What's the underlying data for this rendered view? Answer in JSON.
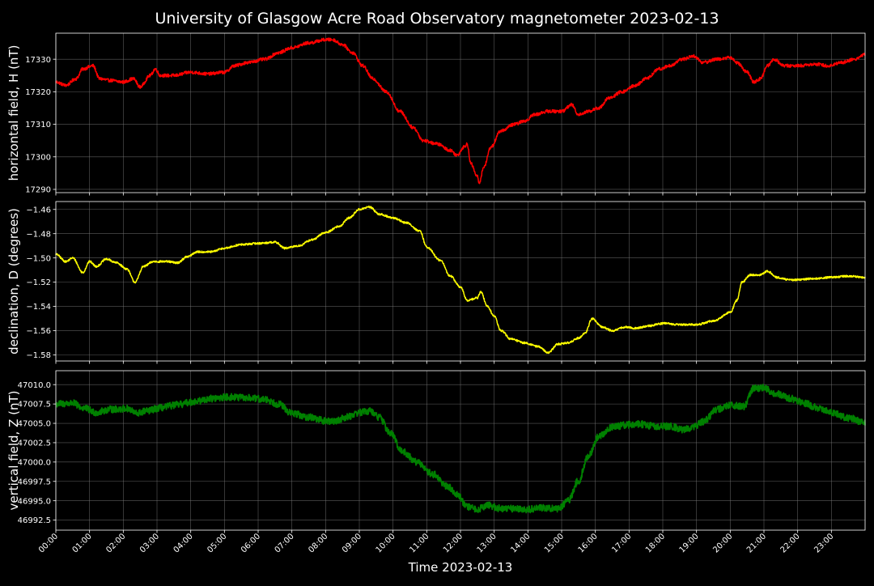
{
  "chart_data": {
    "type": "line",
    "title": "University of Glasgow Acre Road Observatory magnetometer 2023-02-13",
    "xlabel": "Time 2023-02-13",
    "x_ticks": [
      "00:00",
      "01:00",
      "02:00",
      "03:00",
      "04:00",
      "05:00",
      "06:00",
      "07:00",
      "08:00",
      "09:00",
      "10:00",
      "11:00",
      "12:00",
      "13:00",
      "14:00",
      "15:00",
      "16:00",
      "17:00",
      "18:00",
      "19:00",
      "20:00",
      "21:00",
      "22:00",
      "23:00"
    ],
    "xlim_hours": [
      0,
      24
    ],
    "grid": true,
    "background": "#000000",
    "panels": [
      {
        "name": "H",
        "ylabel": "horizontal field, H (nT)",
        "color": "#ff0000",
        "ylim": [
          17289,
          17338
        ],
        "y_ticks": [
          "17290",
          "17300",
          "17310",
          "17320",
          "17330"
        ],
        "y_tick_values": [
          17290,
          17300,
          17310,
          17320,
          17330
        ],
        "noise": 0.5,
        "points": [
          [
            0,
            17323
          ],
          [
            0.3,
            17322
          ],
          [
            0.6,
            17324
          ],
          [
            0.8,
            17327
          ],
          [
            1.1,
            17328
          ],
          [
            1.3,
            17324
          ],
          [
            1.6,
            17323.5
          ],
          [
            2.0,
            17323
          ],
          [
            2.3,
            17324
          ],
          [
            2.5,
            17321.5
          ],
          [
            2.8,
            17325
          ],
          [
            2.95,
            17327
          ],
          [
            3.1,
            17325
          ],
          [
            3.5,
            17325
          ],
          [
            4.0,
            17326
          ],
          [
            4.5,
            17325.5
          ],
          [
            5.0,
            17326
          ],
          [
            5.3,
            17328
          ],
          [
            5.7,
            17329
          ],
          [
            6.2,
            17330
          ],
          [
            6.6,
            17332
          ],
          [
            7.0,
            17333.5
          ],
          [
            7.5,
            17335
          ],
          [
            8.0,
            17336
          ],
          [
            8.2,
            17336
          ],
          [
            8.5,
            17334.5
          ],
          [
            8.8,
            17332
          ],
          [
            9.1,
            17328
          ],
          [
            9.4,
            17324
          ],
          [
            9.8,
            17320
          ],
          [
            10.2,
            17314
          ],
          [
            10.6,
            17309
          ],
          [
            10.9,
            17305
          ],
          [
            11.3,
            17304
          ],
          [
            11.7,
            17302
          ],
          [
            11.9,
            17300.5
          ],
          [
            12.1,
            17303
          ],
          [
            12.2,
            17304
          ],
          [
            12.3,
            17298
          ],
          [
            12.5,
            17294
          ],
          [
            12.55,
            17292
          ],
          [
            12.7,
            17297
          ],
          [
            12.9,
            17303
          ],
          [
            13.2,
            17308
          ],
          [
            13.6,
            17310
          ],
          [
            13.9,
            17311
          ],
          [
            14.2,
            17313
          ],
          [
            14.6,
            17314
          ],
          [
            15.0,
            17314
          ],
          [
            15.3,
            17316
          ],
          [
            15.5,
            17313
          ],
          [
            15.8,
            17314
          ],
          [
            16.1,
            17315
          ],
          [
            16.4,
            17318
          ],
          [
            16.8,
            17320
          ],
          [
            17.2,
            17322
          ],
          [
            17.5,
            17324
          ],
          [
            17.9,
            17327
          ],
          [
            18.2,
            17328
          ],
          [
            18.6,
            17330
          ],
          [
            18.9,
            17331
          ],
          [
            19.2,
            17329
          ],
          [
            19.6,
            17330
          ],
          [
            20.0,
            17330.5
          ],
          [
            20.2,
            17329
          ],
          [
            20.5,
            17326
          ],
          [
            20.7,
            17323
          ],
          [
            20.9,
            17324
          ],
          [
            21.1,
            17328
          ],
          [
            21.3,
            17330
          ],
          [
            21.6,
            17328
          ],
          [
            22.0,
            17328
          ],
          [
            22.5,
            17328.5
          ],
          [
            22.9,
            17328
          ],
          [
            23.3,
            17329
          ],
          [
            23.7,
            17330
          ],
          [
            24.0,
            17331.5
          ]
        ]
      },
      {
        "name": "D",
        "ylabel": "declination, D (degrees)",
        "color": "#ffff00",
        "ylim": [
          -1.585,
          -1.4535
        ],
        "y_ticks": [
          "−1.46",
          "−1.48",
          "−1.50",
          "−1.52",
          "−1.54",
          "−1.56",
          "−1.58"
        ],
        "y_tick_values": [
          -1.46,
          -1.48,
          -1.5,
          -1.52,
          -1.54,
          -1.56,
          -1.58
        ],
        "noise": 0.0008,
        "points": [
          [
            0,
            -1.497
          ],
          [
            0.3,
            -1.503
          ],
          [
            0.5,
            -1.5
          ],
          [
            0.8,
            -1.512
          ],
          [
            1.0,
            -1.503
          ],
          [
            1.2,
            -1.507
          ],
          [
            1.5,
            -1.501
          ],
          [
            1.8,
            -1.504
          ],
          [
            2.1,
            -1.509
          ],
          [
            2.35,
            -1.52
          ],
          [
            2.6,
            -1.507
          ],
          [
            2.9,
            -1.503
          ],
          [
            3.3,
            -1.503
          ],
          [
            3.6,
            -1.504
          ],
          [
            3.9,
            -1.499
          ],
          [
            4.2,
            -1.495
          ],
          [
            4.6,
            -1.495
          ],
          [
            5.0,
            -1.492
          ],
          [
            5.5,
            -1.489
          ],
          [
            6.0,
            -1.488
          ],
          [
            6.5,
            -1.487
          ],
          [
            6.8,
            -1.492
          ],
          [
            7.2,
            -1.49
          ],
          [
            7.6,
            -1.485
          ],
          [
            8.0,
            -1.479
          ],
          [
            8.4,
            -1.474
          ],
          [
            8.7,
            -1.467
          ],
          [
            9.0,
            -1.46
          ],
          [
            9.3,
            -1.458
          ],
          [
            9.6,
            -1.464
          ],
          [
            10.0,
            -1.467
          ],
          [
            10.4,
            -1.471
          ],
          [
            10.8,
            -1.478
          ],
          [
            11.0,
            -1.491
          ],
          [
            11.4,
            -1.502
          ],
          [
            11.7,
            -1.515
          ],
          [
            12.0,
            -1.524
          ],
          [
            12.2,
            -1.535
          ],
          [
            12.5,
            -1.533
          ],
          [
            12.6,
            -1.528
          ],
          [
            12.8,
            -1.54
          ],
          [
            13.0,
            -1.548
          ],
          [
            13.2,
            -1.56
          ],
          [
            13.5,
            -1.567
          ],
          [
            13.9,
            -1.57
          ],
          [
            14.3,
            -1.573
          ],
          [
            14.6,
            -1.578
          ],
          [
            14.9,
            -1.571
          ],
          [
            15.2,
            -1.57
          ],
          [
            15.5,
            -1.566
          ],
          [
            15.7,
            -1.562
          ],
          [
            15.9,
            -1.55
          ],
          [
            16.2,
            -1.557
          ],
          [
            16.5,
            -1.56
          ],
          [
            16.9,
            -1.557
          ],
          [
            17.2,
            -1.558
          ],
          [
            17.6,
            -1.556
          ],
          [
            18.0,
            -1.554
          ],
          [
            18.5,
            -1.555
          ],
          [
            19.0,
            -1.555
          ],
          [
            19.5,
            -1.552
          ],
          [
            20.0,
            -1.545
          ],
          [
            20.2,
            -1.535
          ],
          [
            20.35,
            -1.52
          ],
          [
            20.6,
            -1.514
          ],
          [
            20.9,
            -1.514
          ],
          [
            21.1,
            -1.511
          ],
          [
            21.4,
            -1.516
          ],
          [
            21.7,
            -1.518
          ],
          [
            22.0,
            -1.518
          ],
          [
            22.5,
            -1.517
          ],
          [
            23.0,
            -1.516
          ],
          [
            23.5,
            -1.515
          ],
          [
            24.0,
            -1.516
          ]
        ]
      },
      {
        "name": "Z",
        "ylabel": "vertical field, Z (nT)",
        "color": "#008000",
        "ylim": [
          46991.2,
          47011.8
        ],
        "y_ticks": [
          "46992.5",
          "46995.0",
          "46997.5",
          "47000.0",
          "47002.5",
          "47005.0",
          "47007.5",
          "47010.0"
        ],
        "y_tick_values": [
          46992.5,
          46995.0,
          46997.5,
          47000.0,
          47002.5,
          47005.0,
          47007.5,
          47010.0
        ],
        "noise": 0.45,
        "points": [
          [
            0,
            47007.5
          ],
          [
            0.5,
            47007.6
          ],
          [
            0.8,
            47007.0
          ],
          [
            1.2,
            47006.4
          ],
          [
            1.6,
            47006.8
          ],
          [
            2.1,
            47006.9
          ],
          [
            2.4,
            47006.3
          ],
          [
            2.7,
            47006.6
          ],
          [
            3.1,
            47007.0
          ],
          [
            3.6,
            47007.4
          ],
          [
            4.1,
            47007.8
          ],
          [
            4.6,
            47008.2
          ],
          [
            5.1,
            47008.4
          ],
          [
            5.6,
            47008.3
          ],
          [
            6.2,
            47008.1
          ],
          [
            6.6,
            47007.5
          ],
          [
            7.0,
            47006.3
          ],
          [
            7.5,
            47005.8
          ],
          [
            8.0,
            47005.3
          ],
          [
            8.3,
            47005.3
          ],
          [
            8.6,
            47005.8
          ],
          [
            9.0,
            47006.4
          ],
          [
            9.3,
            47006.6
          ],
          [
            9.6,
            47005.8
          ],
          [
            9.9,
            47003.8
          ],
          [
            10.3,
            47001.3
          ],
          [
            10.7,
            47000.0
          ],
          [
            11.2,
            46998.4
          ],
          [
            11.6,
            46996.9
          ],
          [
            11.9,
            46995.9
          ],
          [
            12.2,
            46994.2
          ],
          [
            12.5,
            46993.9
          ],
          [
            12.8,
            46994.4
          ],
          [
            13.2,
            46994.0
          ],
          [
            13.6,
            46994.0
          ],
          [
            14.0,
            46993.9
          ],
          [
            14.5,
            46994.1
          ],
          [
            14.9,
            46994.0
          ],
          [
            15.2,
            46995.0
          ],
          [
            15.5,
            46997.6
          ],
          [
            15.8,
            47000.8
          ],
          [
            16.1,
            47003.3
          ],
          [
            16.5,
            47004.5
          ],
          [
            16.9,
            47004.8
          ],
          [
            17.3,
            47004.9
          ],
          [
            17.8,
            47004.6
          ],
          [
            18.2,
            47004.6
          ],
          [
            18.6,
            47004.2
          ],
          [
            18.9,
            47004.5
          ],
          [
            19.2,
            47005.2
          ],
          [
            19.6,
            47006.8
          ],
          [
            20.0,
            47007.3
          ],
          [
            20.4,
            47007.2
          ],
          [
            20.7,
            47009.5
          ],
          [
            21.0,
            47009.6
          ],
          [
            21.3,
            47008.9
          ],
          [
            21.8,
            47008.2
          ],
          [
            22.2,
            47007.6
          ],
          [
            22.6,
            47007.0
          ],
          [
            23.0,
            47006.4
          ],
          [
            23.5,
            47005.7
          ],
          [
            24.0,
            47005.1
          ]
        ]
      }
    ]
  }
}
